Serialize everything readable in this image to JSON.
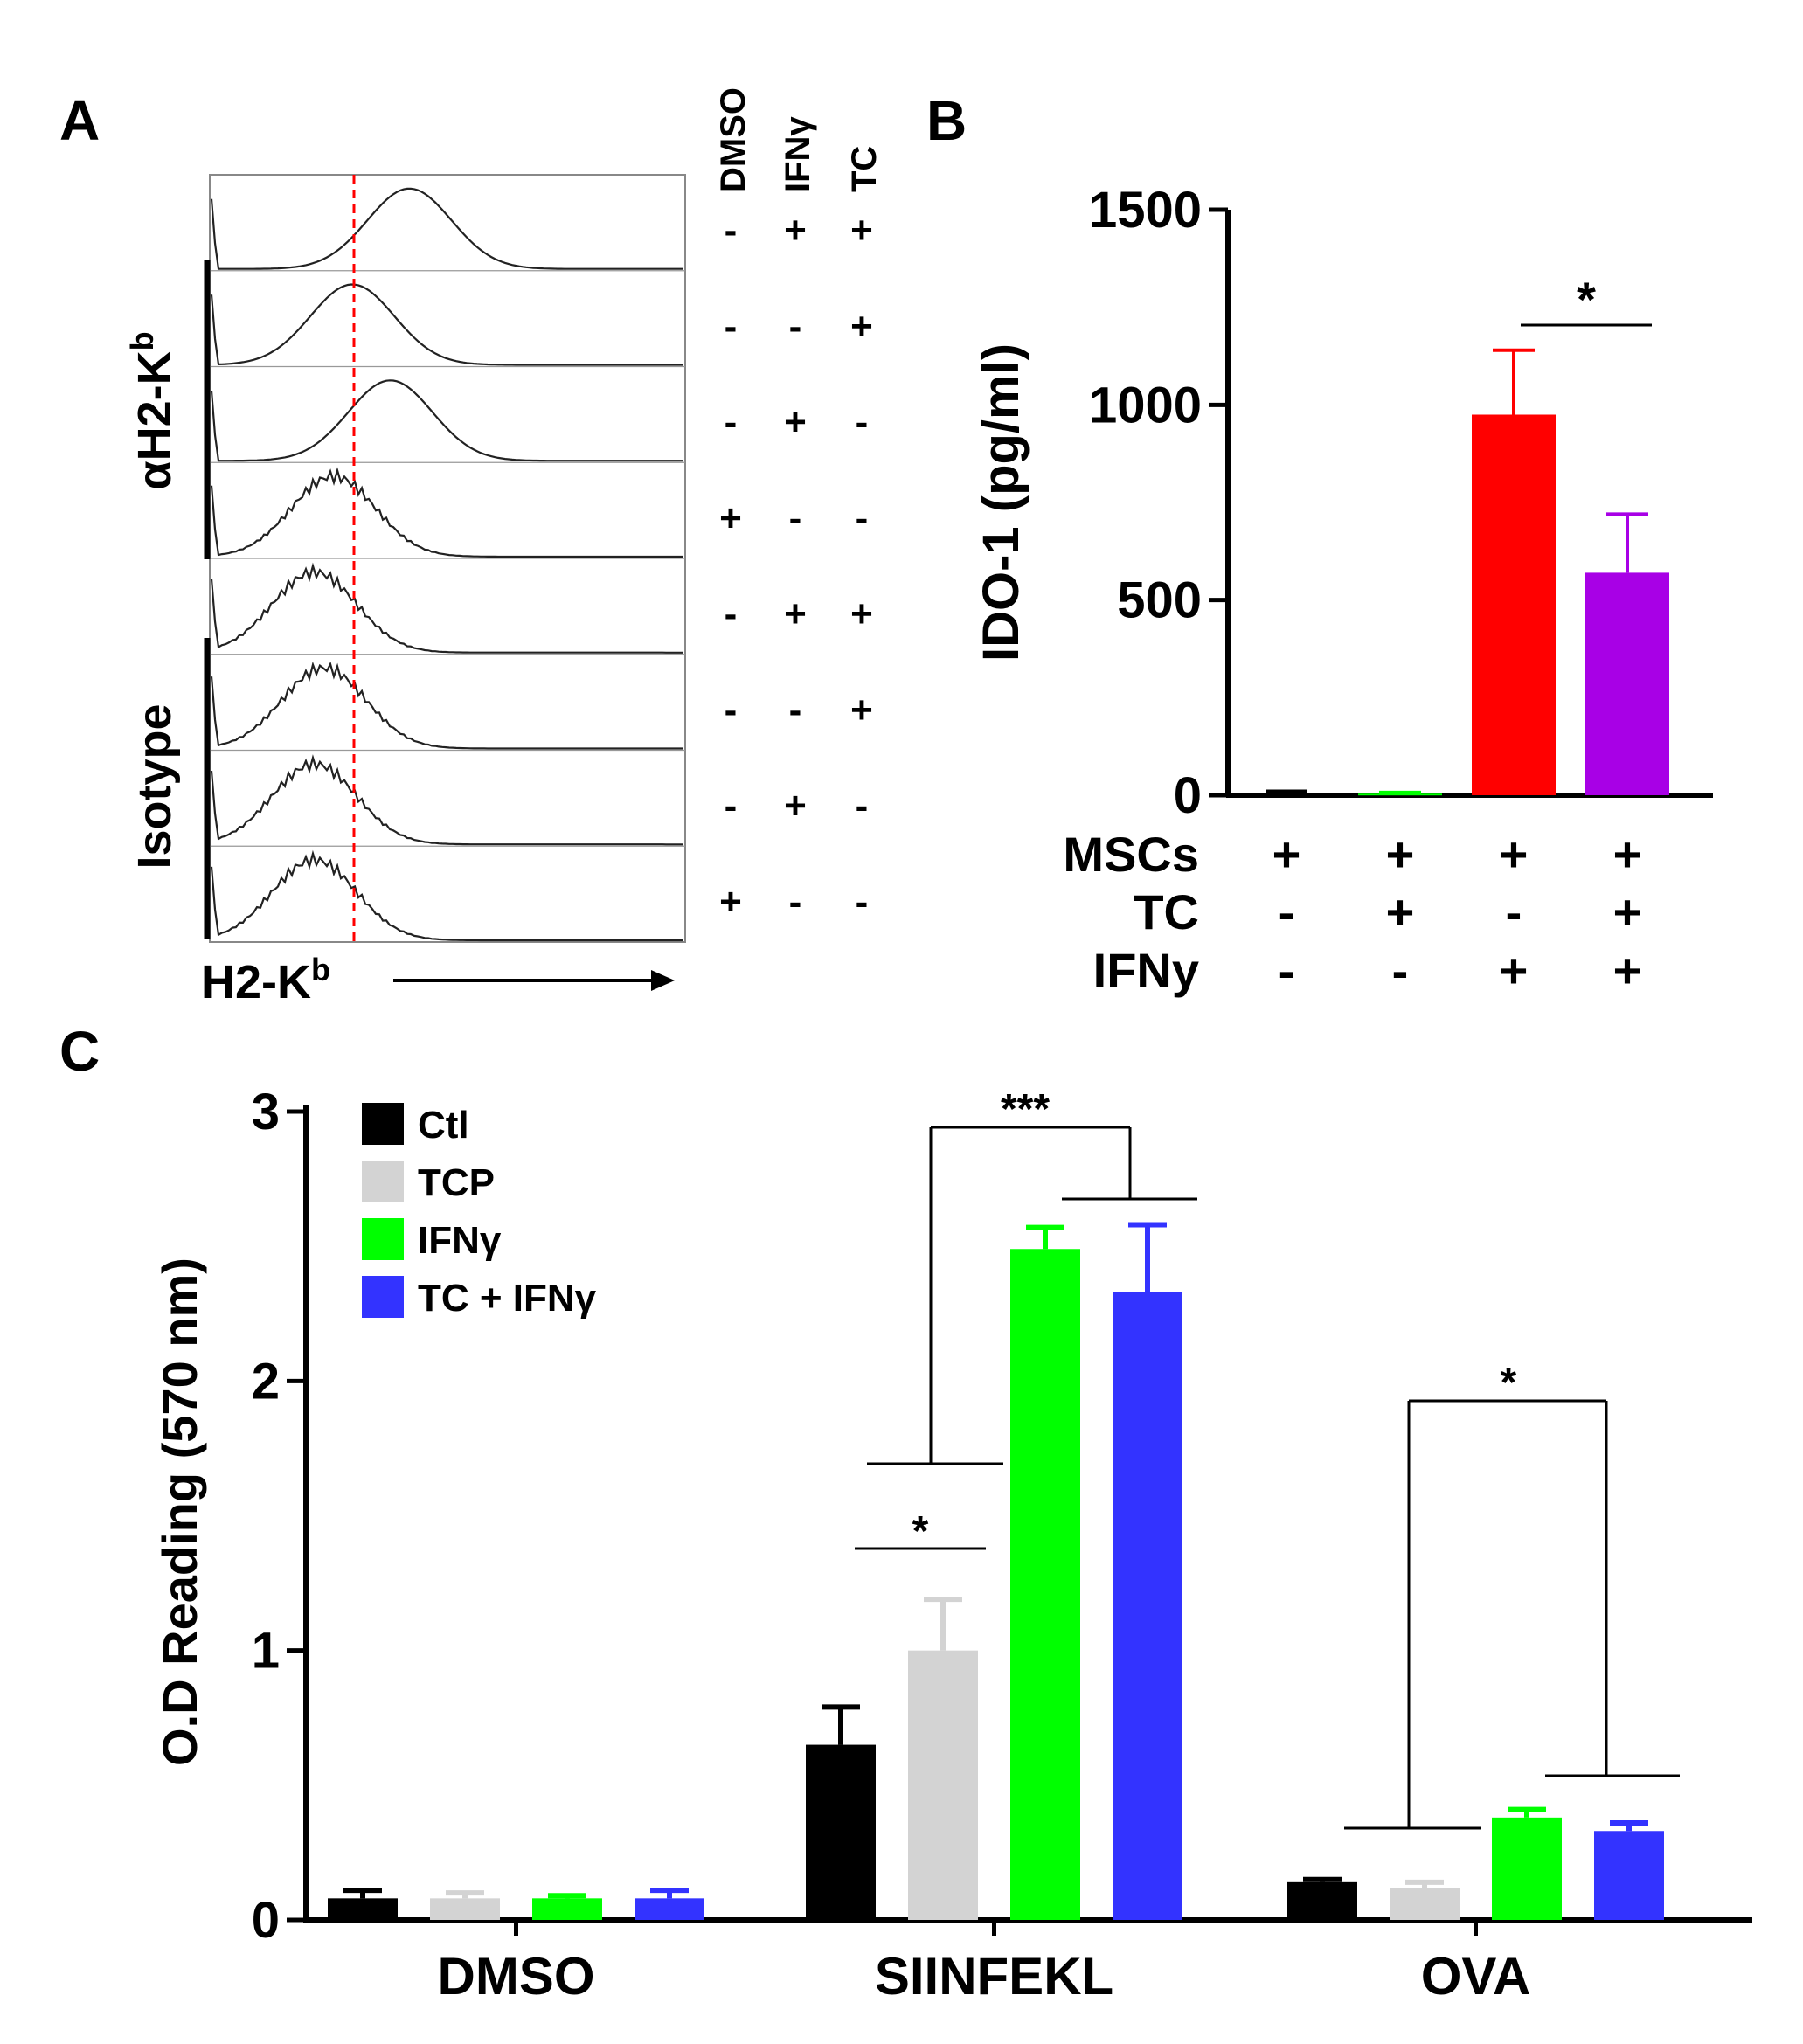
{
  "panel_labels": {
    "a": "A",
    "b": "B",
    "c": "C"
  },
  "colors": {
    "black": "#000000",
    "gray": "#d3d3d3",
    "green": "#00ff00",
    "blue": "#0000ff",
    "red": "#ff0000",
    "purple": "#a800e6",
    "dashed_line": "#ff0000"
  },
  "chart_data": [
    {
      "panel": "A",
      "type": "histogram-stack",
      "xlabel": "H2-K",
      "xlabel_sup": "b",
      "group_labels": {
        "top": "αH2-K",
        "top_sup": "b",
        "bottom": "Isotype"
      },
      "condition_headers": [
        "DMSO",
        "IFNγ",
        "TC"
      ],
      "rows": [
        {
          "group": "αH2-K",
          "signs": [
            "-",
            "+",
            "+"
          ],
          "peak": 0.42
        },
        {
          "group": "αH2-K",
          "signs": [
            "-",
            "-",
            "+"
          ],
          "peak": 0.3
        },
        {
          "group": "αH2-K",
          "signs": [
            "-",
            "+",
            "-"
          ],
          "peak": 0.38
        },
        {
          "group": "αH2-K",
          "signs": [
            "+",
            "-",
            "-"
          ],
          "peak": 0.26
        },
        {
          "group": "Isotype",
          "signs": [
            "-",
            "+",
            "+"
          ],
          "peak": 0.22
        },
        {
          "group": "Isotype",
          "signs": [
            "-",
            "-",
            "+"
          ],
          "peak": 0.24
        },
        {
          "group": "Isotype",
          "signs": [
            "-",
            "+",
            "-"
          ],
          "peak": 0.22
        },
        {
          "group": "Isotype",
          "signs": [
            "+",
            "-",
            "-"
          ],
          "peak": 0.22
        }
      ]
    },
    {
      "panel": "B",
      "type": "bar",
      "ylabel": "IDO-1 (pg/ml)",
      "ylim": [
        0,
        1500
      ],
      "yticks": [
        "0",
        "500",
        "1000",
        "1500"
      ],
      "ytick_values": [
        0,
        500,
        1000,
        1500
      ],
      "values": [
        5,
        4,
        975,
        570
      ],
      "errors": [
        5,
        3,
        165,
        150
      ],
      "bar_colors": [
        "#000000",
        "#00ff00",
        "#ff0000",
        "#a800e6"
      ],
      "conditions": [
        {
          "label": "MSCs",
          "signs": [
            "+",
            "+",
            "+",
            "+"
          ]
        },
        {
          "label": "TC",
          "signs": [
            "-",
            "+",
            "-",
            "+"
          ]
        },
        {
          "label": "IFNy",
          "signs": [
            "-",
            "-",
            "+",
            "+"
          ]
        }
      ],
      "significance": [
        {
          "bars": [
            2,
            3
          ],
          "label": "*"
        }
      ]
    },
    {
      "panel": "C",
      "type": "bar",
      "ylabel": "O.D Reading (570 nm)",
      "ylim": [
        0,
        3
      ],
      "yticks": [
        "0",
        "1",
        "2",
        "3"
      ],
      "ytick_values": [
        0,
        1,
        2,
        3
      ],
      "categories": [
        "DMSO",
        "SIINFEKL",
        "OVA"
      ],
      "series": [
        {
          "name": "Ctl",
          "color": "#000000",
          "values": [
            0.08,
            0.65,
            0.14
          ],
          "errors": [
            0.03,
            0.14,
            0.01
          ]
        },
        {
          "name": "TCP",
          "color": "#d3d3d3",
          "values": [
            0.08,
            1.0,
            0.12
          ],
          "errors": [
            0.02,
            0.19,
            0.02
          ]
        },
        {
          "name": "IFNγ",
          "color": "#00ff00",
          "values": [
            0.08,
            2.49,
            0.38
          ],
          "errors": [
            0.01,
            0.08,
            0.03
          ]
        },
        {
          "name": "TC + IFNγ",
          "color": "#3333ff",
          "values": [
            0.08,
            2.33,
            0.33
          ],
          "errors": [
            0.03,
            0.25,
            0.03
          ]
        }
      ],
      "significance_labels": {
        "siinfekl_top": "***",
        "siinfekl_low": "*",
        "ova": "*"
      }
    }
  ]
}
